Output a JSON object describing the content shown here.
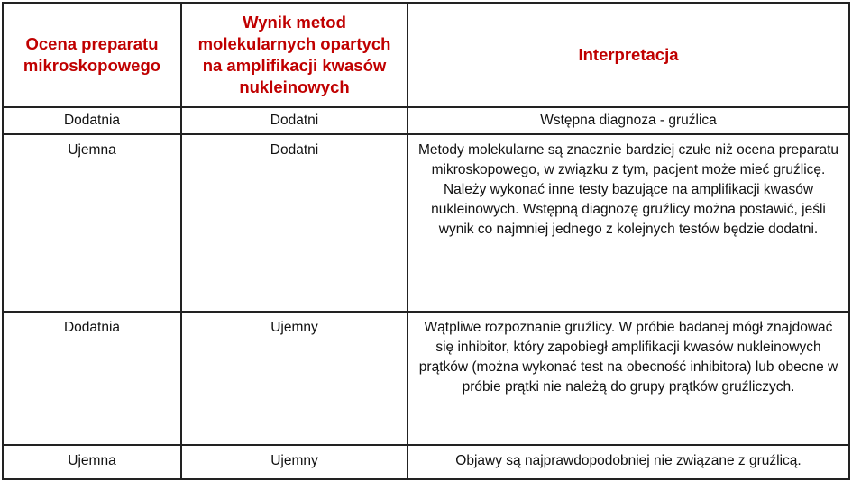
{
  "table": {
    "headers": [
      "Ocena preparatu mikroskopowego",
      "Wynik metod molekularnych opartych na amplifikacji kwasów nukleinowych",
      "Interpretacja"
    ],
    "rows": [
      [
        "Dodatnia",
        "Dodatni",
        "Wstępna diagnoza - gruźlica"
      ],
      [
        "Ujemna",
        "Dodatni",
        "Metody molekularne są znacznie bardziej czułe niż ocena preparatu mikroskopowego, w związku z tym, pacjent może mieć gruźlicę. Należy wykonać inne testy bazujące na amplifikacji kwasów nukleinowych. Wstępną diagnozę gruźlicy można postawić, jeśli wynik co najmniej jednego z kolejnych testów będzie dodatni."
      ],
      [
        "Dodatnia",
        "Ujemny",
        "Wątpliwe rozpoznanie gruźlicy. W próbie badanej mógł znajdować się inhibitor, który zapobiegł amplifikacji kwasów nukleinowych prątków (można wykonać test na obecność  inhibitora) lub obecne w próbie prątki nie należą do grupy prątków gruźliczych."
      ],
      [
        "Ujemna",
        "Ujemny",
        "Objawy są najprawdopodobniej  nie związane z gruźlicą."
      ]
    ]
  },
  "colors": {
    "header_text": "#c00000",
    "border": "#222222"
  }
}
